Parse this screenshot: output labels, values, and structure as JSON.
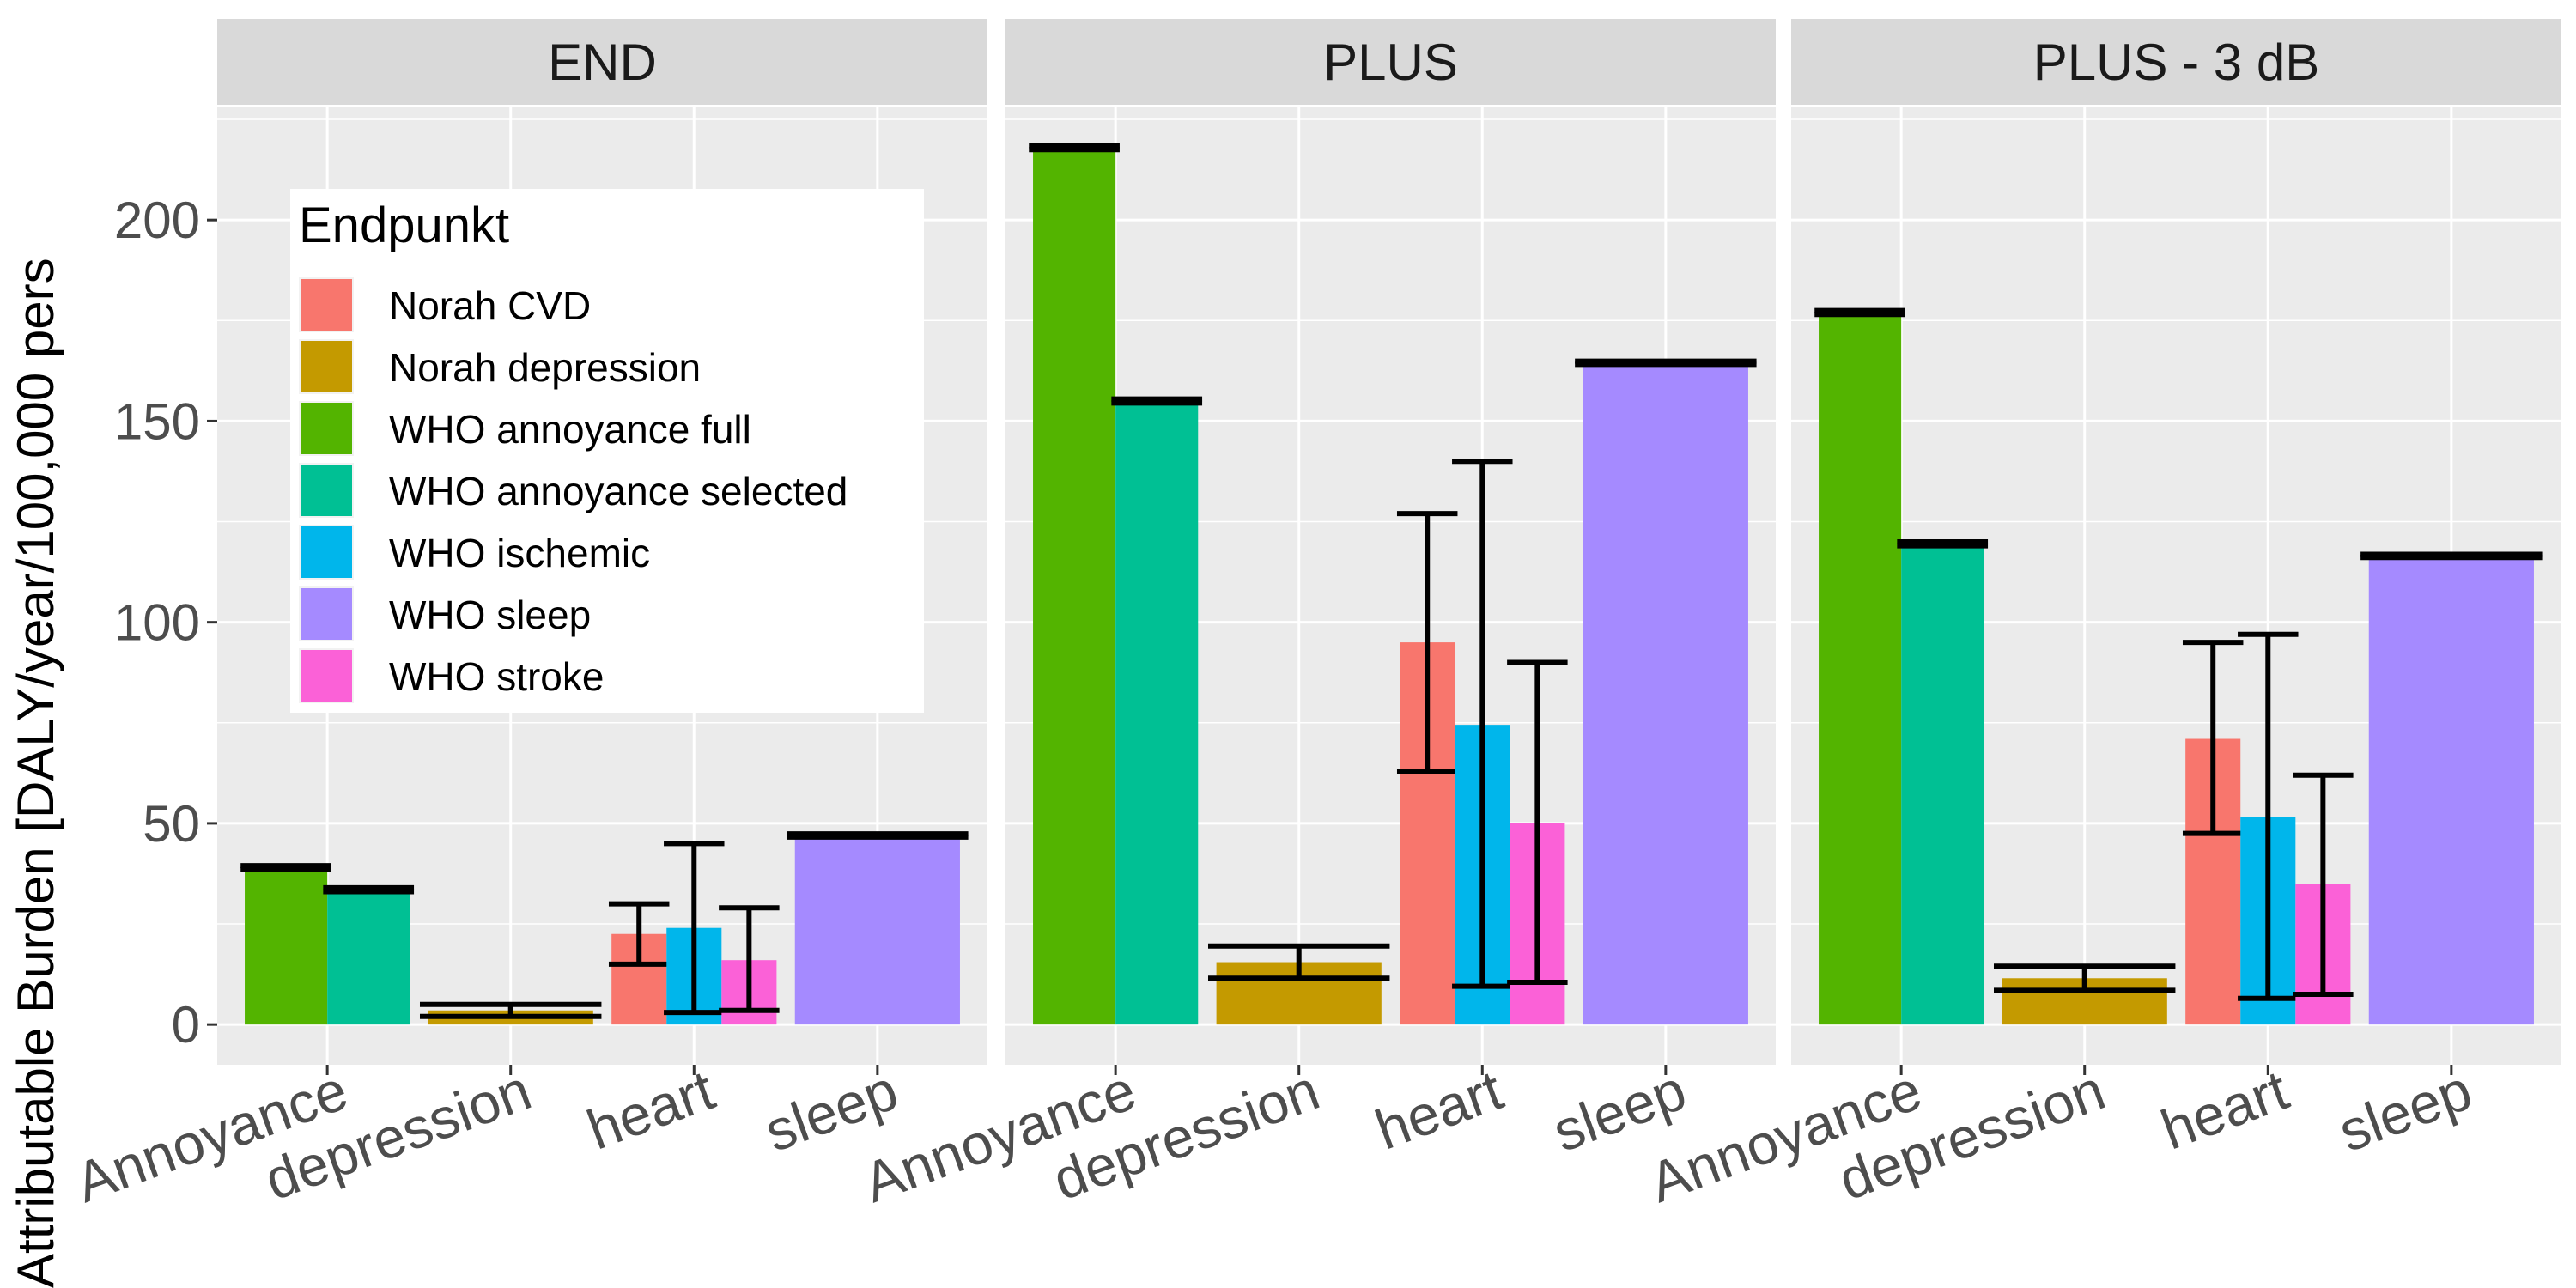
{
  "chart_data": {
    "type": "bar",
    "ylabel": "Attributable Burden [DALY/year/100,000 pers",
    "ylim": [
      -10,
      228
    ],
    "yticks": [
      0,
      50,
      100,
      150,
      200
    ],
    "ytick_labels": [
      "0",
      "50",
      "100",
      "150",
      "200"
    ],
    "categories": [
      "Annoyance",
      "depression",
      "heart",
      "sleep"
    ],
    "legend": {
      "title": "Endpunkt",
      "position": "top-left inside first panel",
      "entries": [
        {
          "name": "Norah CVD",
          "color": "#F8766D"
        },
        {
          "name": "Norah depression",
          "color": "#C49A00"
        },
        {
          "name": "WHO annoyance full",
          "color": "#53B400"
        },
        {
          "name": "WHO annoyance selected",
          "color": "#00C094"
        },
        {
          "name": "WHO ischemic",
          "color": "#00B6EB"
        },
        {
          "name": "WHO sleep",
          "color": "#A58AFF"
        },
        {
          "name": "WHO stroke",
          "color": "#FB61D7"
        }
      ]
    },
    "panels": [
      {
        "title": "END",
        "bars": [
          {
            "category": "Annoyance",
            "series": "WHO annoyance full",
            "value": 39,
            "lower": 38.5,
            "upper": 39.5
          },
          {
            "category": "Annoyance",
            "series": "WHO annoyance selected",
            "value": 33.5,
            "lower": 33,
            "upper": 34
          },
          {
            "category": "depression",
            "series": "Norah depression",
            "value": 3.5,
            "lower": 2,
            "upper": 5
          },
          {
            "category": "heart",
            "series": "Norah CVD",
            "value": 22.5,
            "lower": 15,
            "upper": 30
          },
          {
            "category": "heart",
            "series": "WHO ischemic",
            "value": 24,
            "lower": 3,
            "upper": 45
          },
          {
            "category": "heart",
            "series": "WHO stroke",
            "value": 16,
            "lower": 3.5,
            "upper": 29
          },
          {
            "category": "sleep",
            "series": "WHO sleep",
            "value": 47,
            "lower": 46.6,
            "upper": 47.4
          }
        ]
      },
      {
        "title": "PLUS",
        "bars": [
          {
            "category": "Annoyance",
            "series": "WHO annoyance full",
            "value": 218,
            "lower": 217.5,
            "upper": 218.5
          },
          {
            "category": "Annoyance",
            "series": "WHO annoyance selected",
            "value": 155,
            "lower": 154.5,
            "upper": 155.5
          },
          {
            "category": "depression",
            "series": "Norah depression",
            "value": 15.5,
            "lower": 11.5,
            "upper": 19.5
          },
          {
            "category": "heart",
            "series": "Norah CVD",
            "value": 95,
            "lower": 63,
            "upper": 127
          },
          {
            "category": "heart",
            "series": "WHO ischemic",
            "value": 74.5,
            "lower": 9.5,
            "upper": 140
          },
          {
            "category": "heart",
            "series": "WHO stroke",
            "value": 50,
            "lower": 10.5,
            "upper": 90
          },
          {
            "category": "sleep",
            "series": "WHO sleep",
            "value": 164.5,
            "lower": 164.1,
            "upper": 164.9
          }
        ]
      },
      {
        "title": "PLUS - 3 dB",
        "bars": [
          {
            "category": "Annoyance",
            "series": "WHO annoyance full",
            "value": 177,
            "lower": 176.5,
            "upper": 177.5
          },
          {
            "category": "Annoyance",
            "series": "WHO annoyance selected",
            "value": 119.5,
            "lower": 119,
            "upper": 120
          },
          {
            "category": "depression",
            "series": "Norah depression",
            "value": 11.5,
            "lower": 8.5,
            "upper": 14.5
          },
          {
            "category": "heart",
            "series": "Norah CVD",
            "value": 71,
            "lower": 47.5,
            "upper": 95
          },
          {
            "category": "heart",
            "series": "WHO ischemic",
            "value": 51.5,
            "lower": 6.5,
            "upper": 97
          },
          {
            "category": "heart",
            "series": "WHO stroke",
            "value": 35,
            "lower": 7.5,
            "upper": 62
          },
          {
            "category": "sleep",
            "series": "WHO sleep",
            "value": 116.5,
            "lower": 116.1,
            "upper": 116.9
          }
        ]
      }
    ]
  }
}
